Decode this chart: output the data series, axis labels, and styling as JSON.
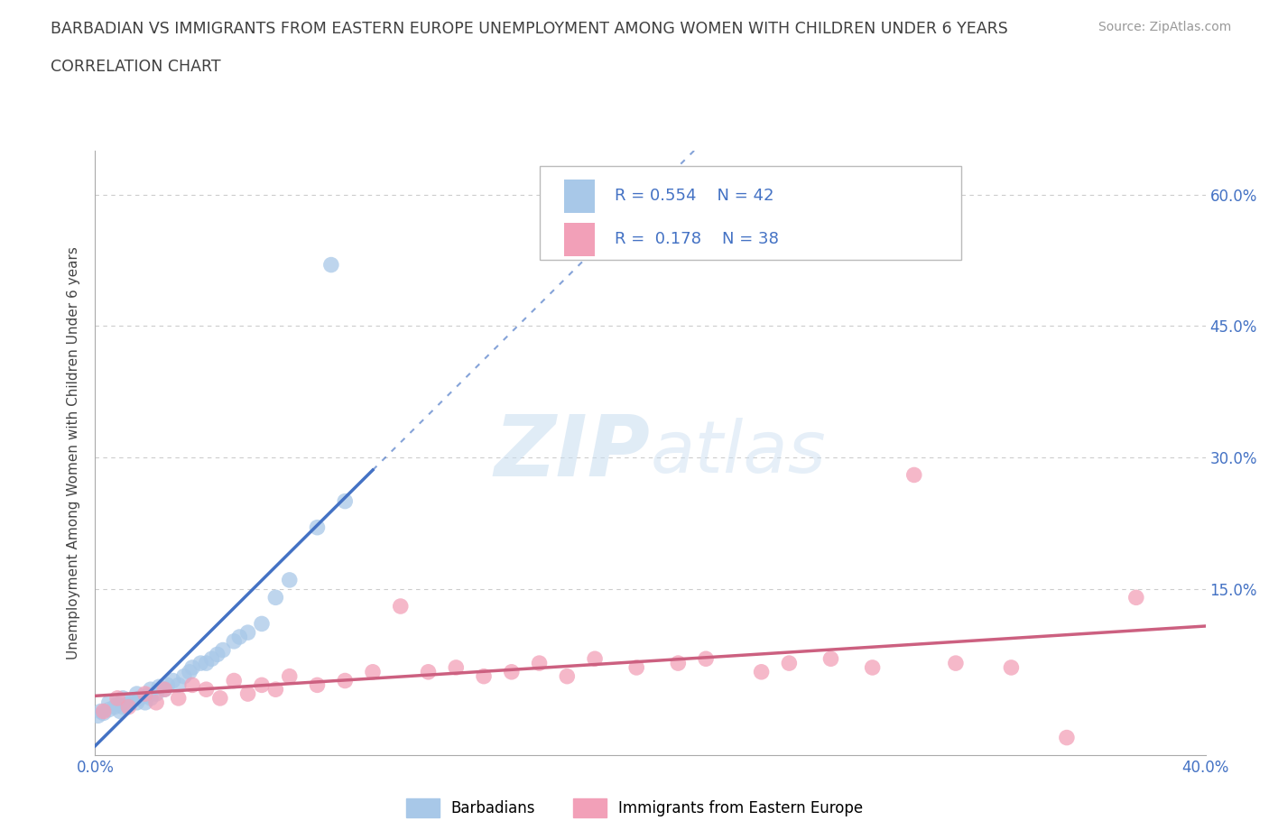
{
  "title_line1": "BARBADIAN VS IMMIGRANTS FROM EASTERN EUROPE UNEMPLOYMENT AMONG WOMEN WITH CHILDREN UNDER 6 YEARS",
  "title_line2": "CORRELATION CHART",
  "source_text": "Source: ZipAtlas.com",
  "ylabel": "Unemployment Among Women with Children Under 6 years",
  "xlim": [
    0.0,
    0.4
  ],
  "ylim": [
    -0.04,
    0.65
  ],
  "xticks": [
    0.0,
    0.05,
    0.1,
    0.15,
    0.2,
    0.25,
    0.3,
    0.35,
    0.4
  ],
  "yticks": [
    0.0,
    0.15,
    0.3,
    0.45,
    0.6
  ],
  "r_barbadian": 0.554,
  "n_barbadian": 42,
  "r_eastern_europe": 0.178,
  "n_eastern_europe": 38,
  "blue_scatter_color": "#a8c8e8",
  "blue_line_color": "#4472c4",
  "pink_scatter_color": "#f2a0b8",
  "pink_line_color": "#cc6080",
  "legend_blue_label": "Barbadians",
  "legend_pink_label": "Immigrants from Eastern Europe",
  "watermark_zip": "ZIP",
  "watermark_atlas": "atlas",
  "title_color": "#404040",
  "source_color": "#999999",
  "grid_color": "#cccccc",
  "tick_label_color": "#4472c4",
  "background_color": "#ffffff",
  "barbadian_x": [
    0.001,
    0.002,
    0.003,
    0.005,
    0.005,
    0.007,
    0.008,
    0.009,
    0.01,
    0.01,
    0.012,
    0.013,
    0.015,
    0.015,
    0.016,
    0.018,
    0.019,
    0.02,
    0.02,
    0.022,
    0.023,
    0.025,
    0.026,
    0.028,
    0.03,
    0.032,
    0.034,
    0.035,
    0.038,
    0.04,
    0.042,
    0.044,
    0.046,
    0.05,
    0.052,
    0.055,
    0.06,
    0.065,
    0.07,
    0.08,
    0.09,
    0.085
  ],
  "barbadian_y": [
    0.005,
    0.01,
    0.008,
    0.012,
    0.02,
    0.015,
    0.018,
    0.01,
    0.015,
    0.025,
    0.018,
    0.022,
    0.02,
    0.03,
    0.025,
    0.02,
    0.028,
    0.025,
    0.035,
    0.03,
    0.038,
    0.035,
    0.04,
    0.045,
    0.04,
    0.05,
    0.055,
    0.06,
    0.065,
    0.065,
    0.07,
    0.075,
    0.08,
    0.09,
    0.095,
    0.1,
    0.11,
    0.14,
    0.16,
    0.22,
    0.25,
    0.52
  ],
  "eastern_europe_x": [
    0.003,
    0.008,
    0.012,
    0.018,
    0.022,
    0.025,
    0.03,
    0.035,
    0.04,
    0.045,
    0.05,
    0.055,
    0.06,
    0.065,
    0.07,
    0.08,
    0.09,
    0.1,
    0.11,
    0.12,
    0.13,
    0.14,
    0.15,
    0.16,
    0.17,
    0.18,
    0.195,
    0.21,
    0.22,
    0.24,
    0.25,
    0.265,
    0.28,
    0.295,
    0.31,
    0.33,
    0.35,
    0.375
  ],
  "eastern_europe_y": [
    0.01,
    0.025,
    0.015,
    0.03,
    0.02,
    0.035,
    0.025,
    0.04,
    0.035,
    0.025,
    0.045,
    0.03,
    0.04,
    0.035,
    0.05,
    0.04,
    0.045,
    0.055,
    0.13,
    0.055,
    0.06,
    0.05,
    0.055,
    0.065,
    0.05,
    0.07,
    0.06,
    0.065,
    0.07,
    0.055,
    0.065,
    0.07,
    0.06,
    0.28,
    0.065,
    0.06,
    -0.02,
    0.14
  ]
}
